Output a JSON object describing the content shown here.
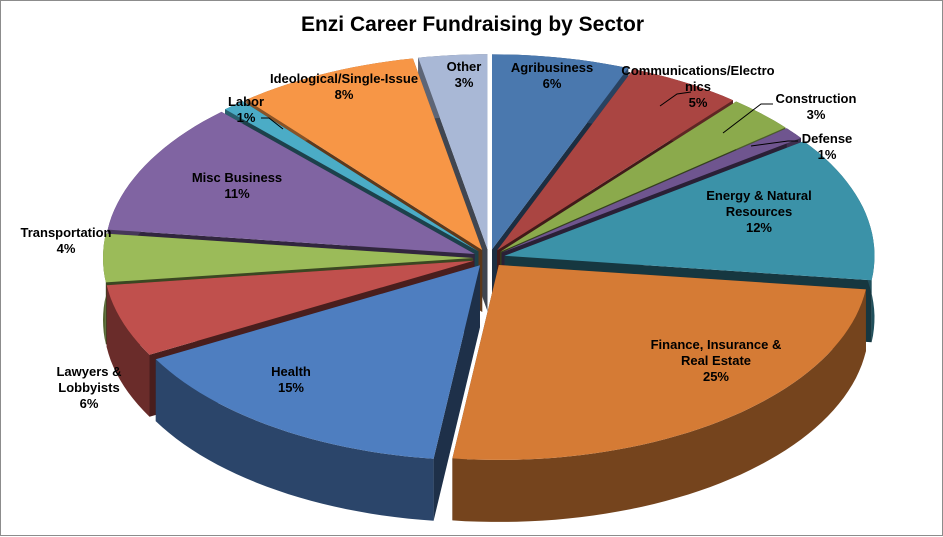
{
  "chart_data": {
    "type": "pie",
    "title": "Enzi  Career Fundraising by Sector",
    "slices": [
      {
        "name": "Agribusiness",
        "label": [
          "Agribusiness"
        ],
        "pct": "6%",
        "value": 6,
        "color": "#4A78AE"
      },
      {
        "name": "Communications/Electronics",
        "label": [
          "Communications/Electro",
          "nics"
        ],
        "pct": "5%",
        "value": 5,
        "color": "#AA4542"
      },
      {
        "name": "Construction",
        "label": [
          "Construction"
        ],
        "pct": "3%",
        "value": 3,
        "color": "#8BAA4C"
      },
      {
        "name": "Defense",
        "label": [
          "Defense"
        ],
        "pct": "1%",
        "value": 1,
        "color": "#6F558F"
      },
      {
        "name": "Energy & Natural Resources",
        "label": [
          "Energy & Natural",
          "Resources"
        ],
        "pct": "12%",
        "value": 12,
        "color": "#3B92A8"
      },
      {
        "name": "Finance, Insurance & Real Estate",
        "label": [
          "Finance, Insurance &",
          "Real Estate"
        ],
        "pct": "25%",
        "value": 25,
        "color": "#D57B35"
      },
      {
        "name": "Health",
        "label": [
          "Health"
        ],
        "pct": "15%",
        "value": 15,
        "color": "#4E7EC0"
      },
      {
        "name": "Lawyers & Lobbyists",
        "label": [
          "Lawyers &",
          "Lobbyists"
        ],
        "pct": "6%",
        "value": 6,
        "color": "#C0504D"
      },
      {
        "name": "Transportation",
        "label": [
          "Transportation"
        ],
        "pct": "4%",
        "value": 4,
        "color": "#9BBB59"
      },
      {
        "name": "Misc Business",
        "label": [
          "Misc Business"
        ],
        "pct": "11%",
        "value": 11,
        "color": "#8064A2"
      },
      {
        "name": "Labor",
        "label": [
          "Labor"
        ],
        "pct": "1%",
        "value": 1,
        "color": "#4BACC6"
      },
      {
        "name": "Ideological/Single-Issue",
        "label": [
          "Ideological/Single-Issue"
        ],
        "pct": "8%",
        "value": 8,
        "color": "#F79646"
      },
      {
        "name": "Other",
        "label": [
          "Other"
        ],
        "pct": "3%",
        "value": 3,
        "color": "#A9B8D6"
      }
    ]
  }
}
